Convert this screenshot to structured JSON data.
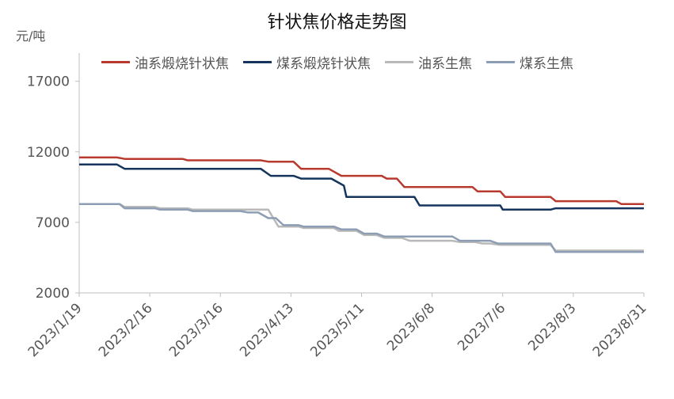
{
  "chart_data": {
    "type": "line",
    "title": "针状焦价格走势图",
    "ylabel": "元/吨",
    "xlabel": "",
    "ylim": [
      2000,
      19000
    ],
    "yticks": [
      2000,
      7000,
      12000,
      17000
    ],
    "x_tick_labels": [
      "2023/1/19",
      "2023/2/16",
      "2023/3/16",
      "2023/4/13",
      "2023/5/11",
      "2023/6/8",
      "2023/7/6",
      "2023/8/3",
      "2023/8/31"
    ],
    "x_start": "2023-01-19",
    "x_end": "2023-08-31",
    "legend_position": "top",
    "grid": false,
    "series": [
      {
        "name": "油系煅烧针状焦",
        "color": "#b83a2f",
        "points": [
          [
            "2023-01-19",
            11600
          ],
          [
            "2023-02-03",
            11600
          ],
          [
            "2023-02-06",
            11500
          ],
          [
            "2023-03-01",
            11500
          ],
          [
            "2023-03-03",
            11400
          ],
          [
            "2023-04-01",
            11400
          ],
          [
            "2023-04-04",
            11300
          ],
          [
            "2023-04-14",
            11300
          ],
          [
            "2023-04-17",
            10800
          ],
          [
            "2023-04-28",
            10800
          ],
          [
            "2023-05-03",
            10300
          ],
          [
            "2023-05-19",
            10300
          ],
          [
            "2023-05-21",
            10100
          ],
          [
            "2023-05-25",
            10100
          ],
          [
            "2023-05-28",
            9500
          ],
          [
            "2023-06-24",
            9500
          ],
          [
            "2023-06-26",
            9200
          ],
          [
            "2023-07-05",
            9200
          ],
          [
            "2023-07-07",
            8800
          ],
          [
            "2023-07-25",
            8800
          ],
          [
            "2023-07-27",
            8500
          ],
          [
            "2023-08-20",
            8500
          ],
          [
            "2023-08-22",
            8300
          ],
          [
            "2023-08-31",
            8300
          ]
        ]
      },
      {
        "name": "煤系煅烧针状焦",
        "color": "#15355e",
        "points": [
          [
            "2023-01-19",
            11100
          ],
          [
            "2023-02-03",
            11100
          ],
          [
            "2023-02-06",
            10800
          ],
          [
            "2023-04-01",
            10800
          ],
          [
            "2023-04-05",
            10300
          ],
          [
            "2023-04-14",
            10300
          ],
          [
            "2023-04-17",
            10100
          ],
          [
            "2023-04-29",
            10100
          ],
          [
            "2023-05-04",
            9600
          ],
          [
            "2023-05-05",
            8800
          ],
          [
            "2023-06-01",
            8800
          ],
          [
            "2023-06-03",
            8200
          ],
          [
            "2023-07-05",
            8200
          ],
          [
            "2023-07-06",
            7900
          ],
          [
            "2023-07-25",
            7900
          ],
          [
            "2023-07-27",
            8000
          ],
          [
            "2023-08-31",
            8000
          ]
        ]
      },
      {
        "name": "油系生焦",
        "color": "#b9b9b9",
        "points": [
          [
            "2023-01-19",
            8300
          ],
          [
            "2023-02-04",
            8300
          ],
          [
            "2023-02-06",
            8100
          ],
          [
            "2023-02-18",
            8100
          ],
          [
            "2023-02-20",
            8000
          ],
          [
            "2023-03-03",
            8000
          ],
          [
            "2023-03-05",
            7900
          ],
          [
            "2023-04-04",
            7900
          ],
          [
            "2023-04-08",
            6700
          ],
          [
            "2023-04-16",
            6700
          ],
          [
            "2023-04-18",
            6600
          ],
          [
            "2023-04-30",
            6600
          ],
          [
            "2023-05-02",
            6400
          ],
          [
            "2023-05-09",
            6400
          ],
          [
            "2023-05-12",
            6100
          ],
          [
            "2023-05-17",
            6100
          ],
          [
            "2023-05-20",
            5900
          ],
          [
            "2023-05-27",
            5900
          ],
          [
            "2023-05-30",
            5700
          ],
          [
            "2023-06-16",
            5700
          ],
          [
            "2023-06-19",
            5600
          ],
          [
            "2023-06-25",
            5600
          ],
          [
            "2023-06-28",
            5500
          ],
          [
            "2023-07-01",
            5500
          ],
          [
            "2023-07-05",
            5400
          ],
          [
            "2023-07-25",
            5400
          ],
          [
            "2023-07-27",
            5000
          ],
          [
            "2023-08-31",
            5000
          ]
        ]
      },
      {
        "name": "煤系生焦",
        "color": "#8d9db3",
        "points": [
          [
            "2023-01-19",
            8300
          ],
          [
            "2023-02-04",
            8300
          ],
          [
            "2023-02-06",
            8000
          ],
          [
            "2023-02-18",
            8000
          ],
          [
            "2023-02-20",
            7900
          ],
          [
            "2023-03-03",
            7900
          ],
          [
            "2023-03-05",
            7800
          ],
          [
            "2023-03-24",
            7800
          ],
          [
            "2023-03-27",
            7700
          ],
          [
            "2023-03-31",
            7700
          ],
          [
            "2023-04-04",
            7300
          ],
          [
            "2023-04-07",
            7300
          ],
          [
            "2023-04-10",
            6800
          ],
          [
            "2023-04-16",
            6800
          ],
          [
            "2023-04-18",
            6700
          ],
          [
            "2023-04-30",
            6700
          ],
          [
            "2023-05-03",
            6500
          ],
          [
            "2023-05-09",
            6500
          ],
          [
            "2023-05-12",
            6200
          ],
          [
            "2023-05-17",
            6200
          ],
          [
            "2023-05-20",
            6000
          ],
          [
            "2023-05-27",
            6000
          ],
          [
            "2023-05-30",
            6000
          ],
          [
            "2023-06-16",
            6000
          ],
          [
            "2023-06-19",
            5700
          ],
          [
            "2023-07-01",
            5700
          ],
          [
            "2023-07-04",
            5500
          ],
          [
            "2023-07-25",
            5500
          ],
          [
            "2023-07-27",
            4900
          ],
          [
            "2023-08-31",
            4900
          ]
        ]
      }
    ]
  }
}
